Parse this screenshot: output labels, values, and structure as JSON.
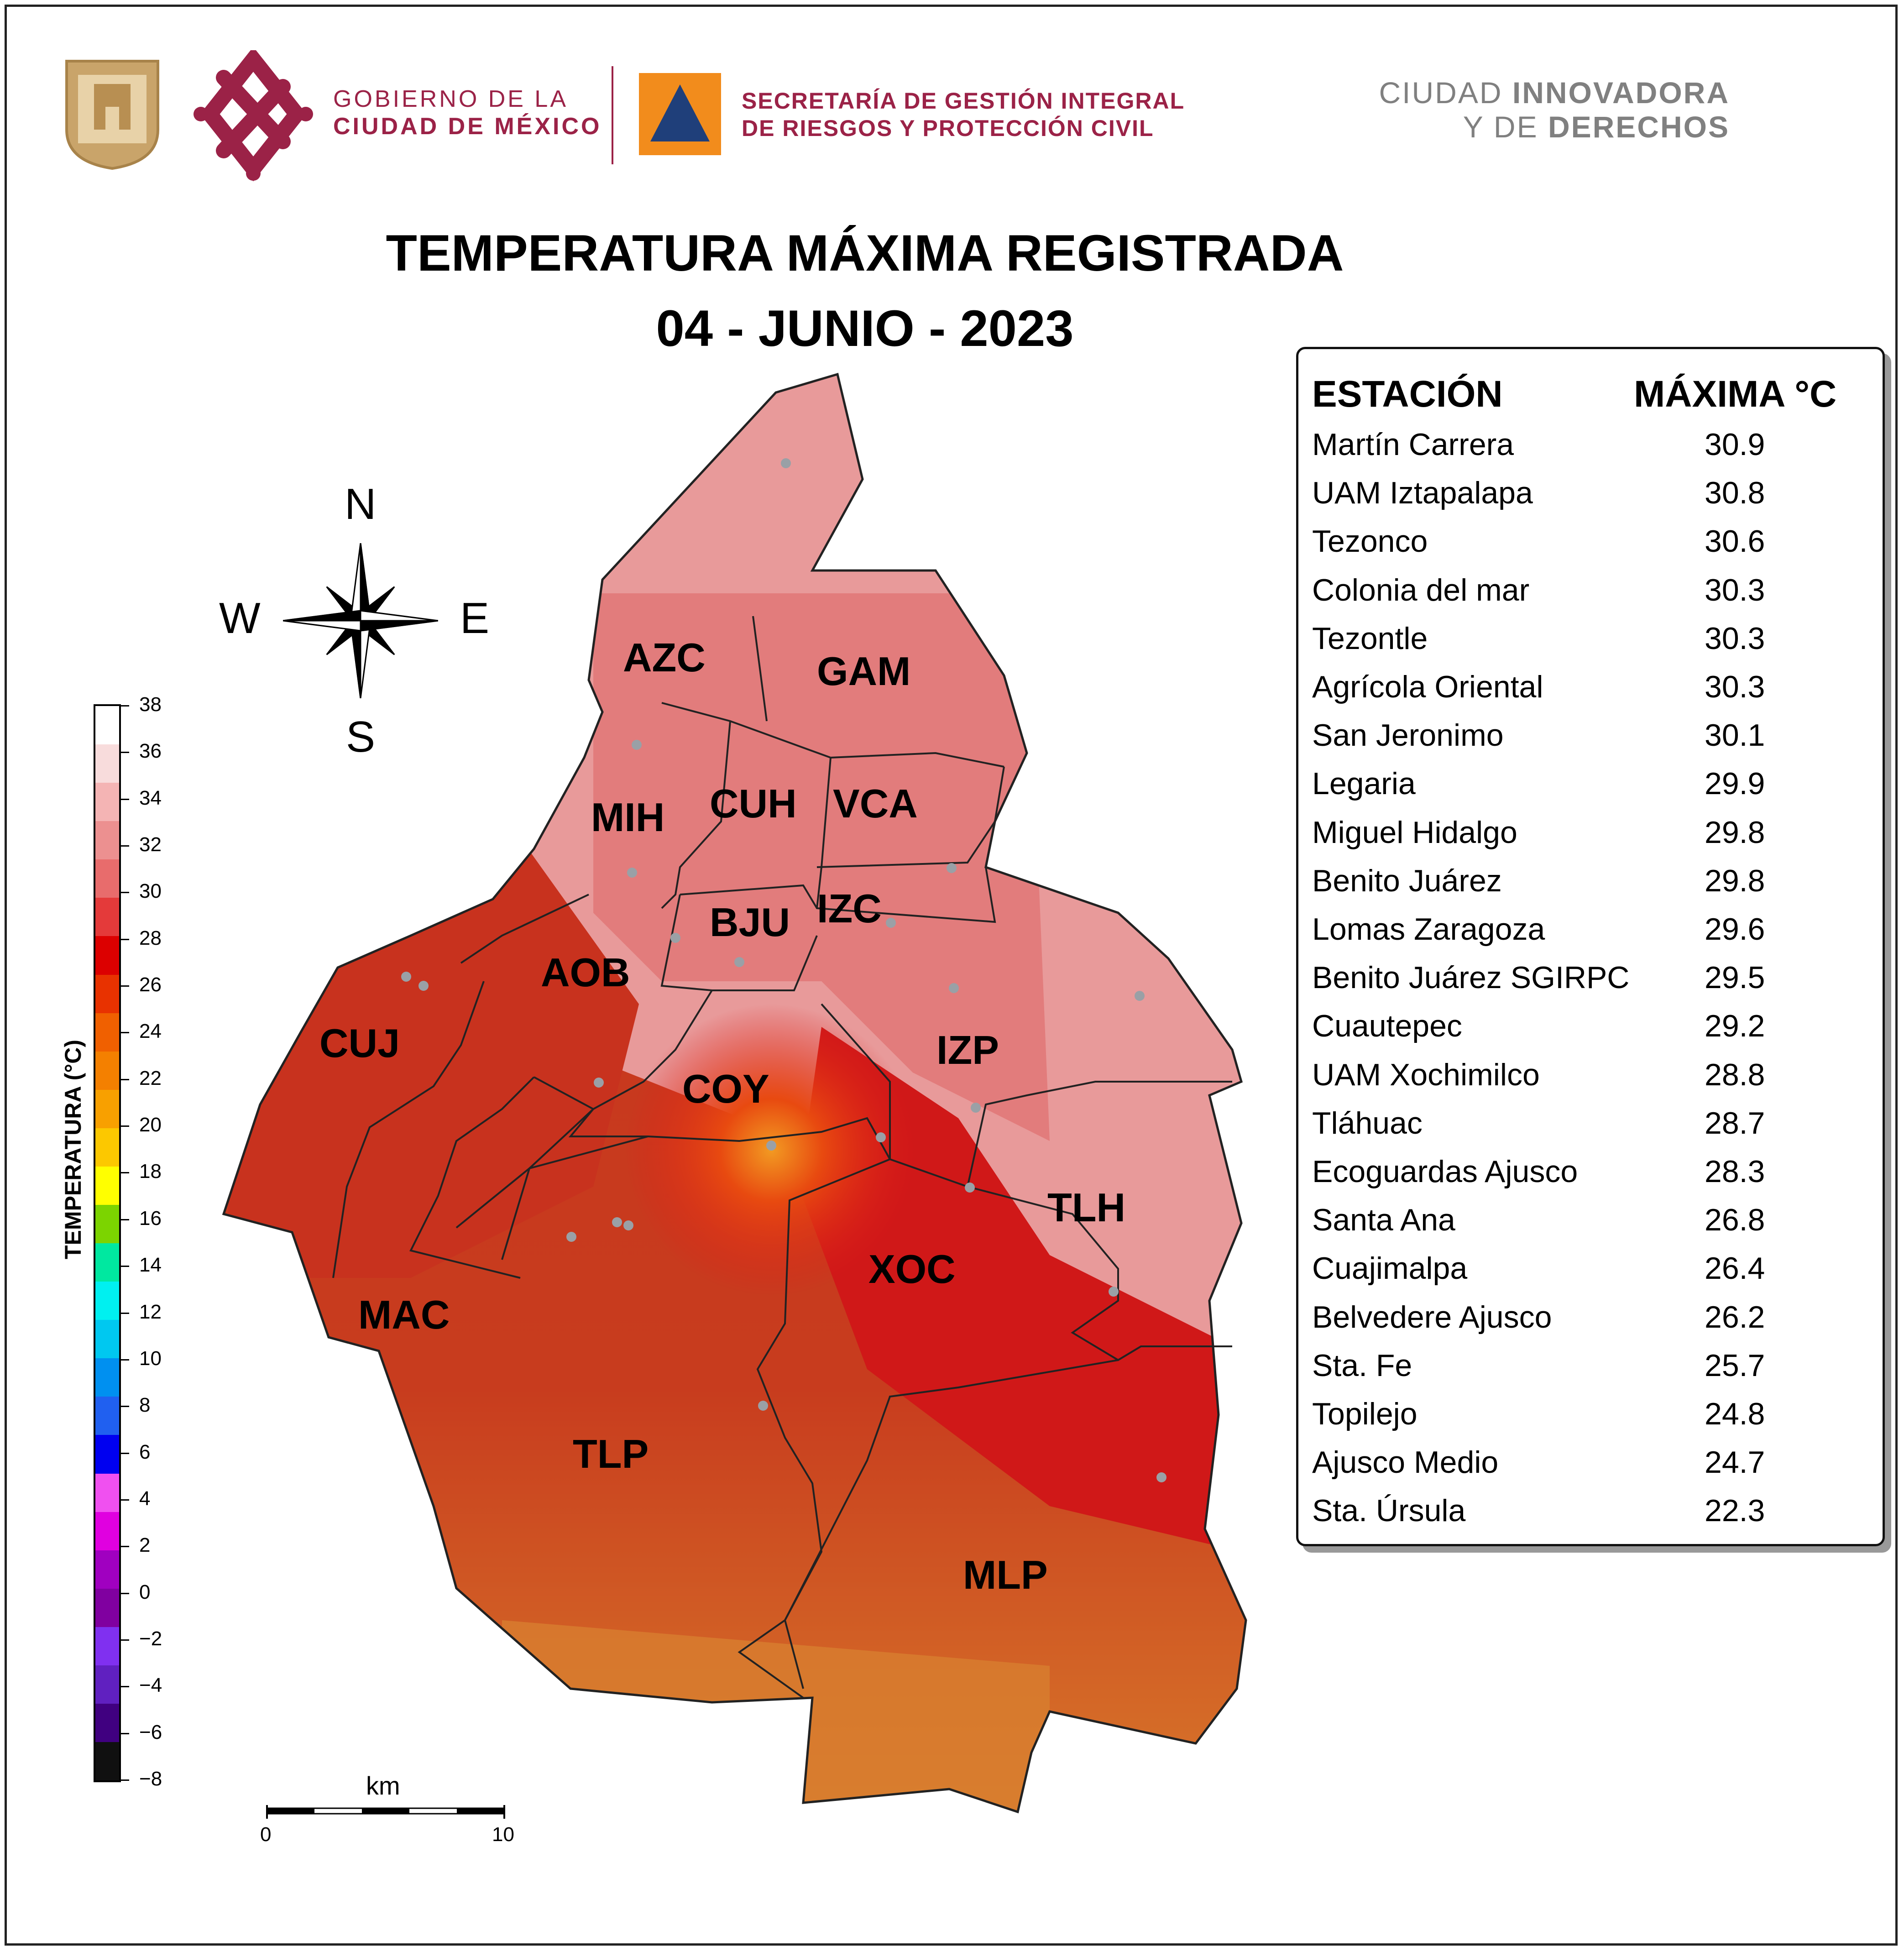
{
  "header": {
    "gov_line1": "GOBIERNO DE LA",
    "gov_line2": "CIUDAD DE MÉXICO",
    "sec_line1": "SECRETARÍA DE GESTIÓN INTEGRAL",
    "sec_line2": "DE RIESGOS Y PROTECCIÓN CIVIL",
    "slogan1_a": "CIUDAD ",
    "slogan1_b": "INNOVADORA",
    "slogan2_a": "Y DE ",
    "slogan2_b": "DERECHOS"
  },
  "title": {
    "line1": "TEMPERATURA MÁXIMA REGISTRADA",
    "line2": "04 - JUNIO - 2023"
  },
  "compass": {
    "n": "N",
    "s": "S",
    "e": "E",
    "w": "W"
  },
  "colorbar": {
    "title": "TEMPERATURA (°C)",
    "ticks": [
      "38",
      "36",
      "34",
      "32",
      "30",
      "28",
      "26",
      "24",
      "22",
      "20",
      "18",
      "16",
      "14",
      "12",
      "10",
      "8",
      "6",
      "4",
      "2",
      "0",
      "−2",
      "−4",
      "−6",
      "−8"
    ],
    "colors": [
      "#ffffff",
      "#f8dcdc",
      "#f4b4b4",
      "#ec9090",
      "#e86c6c",
      "#e43a3a",
      "#dc0000",
      "#e83200",
      "#f06000",
      "#f48000",
      "#f8a000",
      "#fcc800",
      "#ffff00",
      "#7cd400",
      "#00e8a0",
      "#00f0f0",
      "#00c8f0",
      "#0090f0",
      "#2060f0",
      "#0000f0",
      "#f050f0",
      "#e000e0",
      "#a000c0",
      "#8000a0",
      "#8030f0",
      "#6020c0",
      "#400080",
      "#101010"
    ]
  },
  "scale": {
    "unit": "km",
    "left": "0",
    "right": "10"
  },
  "stations": {
    "header_name": "ESTACIÓN",
    "header_value": "MÁXIMA °C",
    "rows": [
      {
        "name": "Martín Carrera",
        "value": "30.9"
      },
      {
        "name": "UAM Iztapalapa",
        "value": "30.8"
      },
      {
        "name": "Tezonco",
        "value": "30.6"
      },
      {
        "name": "Colonia del mar",
        "value": "30.3"
      },
      {
        "name": "Tezontle",
        "value": "30.3"
      },
      {
        "name": "Agrícola Oriental",
        "value": "30.3"
      },
      {
        "name": "San Jeronimo",
        "value": "30.1"
      },
      {
        "name": "Legaria",
        "value": "29.9"
      },
      {
        "name": "Miguel Hidalgo",
        "value": "29.8"
      },
      {
        "name": "Benito Juárez",
        "value": "29.8"
      },
      {
        "name": "Lomas Zaragoza",
        "value": "29.6"
      },
      {
        "name": "Benito Juárez SGIRPC",
        "value": "29.5"
      },
      {
        "name": "Cuautepec",
        "value": "29.2"
      },
      {
        "name": "UAM Xochimilco",
        "value": "28.8"
      },
      {
        "name": "Tláhuac",
        "value": "28.7"
      },
      {
        "name": "Ecoguardas Ajusco",
        "value": "28.3"
      },
      {
        "name": "Santa Ana",
        "value": "26.8"
      },
      {
        "name": "Cuajimalpa",
        "value": "26.4"
      },
      {
        "name": "Belvedere Ajusco",
        "value": "26.2"
      },
      {
        "name": "Sta. Fe",
        "value": "25.7"
      },
      {
        "name": "Topilejo",
        "value": "24.8"
      },
      {
        "name": "Ajusco Medio",
        "value": "24.7"
      },
      {
        "name": "Sta. Úrsula",
        "value": "22.3"
      }
    ]
  },
  "regions": [
    "AZC",
    "GAM",
    "MIH",
    "CUH",
    "VCA",
    "BJU",
    "IZC",
    "AOB",
    "CUJ",
    "COY",
    "IZP",
    "TLH",
    "XOC",
    "MAC",
    "TLP",
    "MLP"
  ]
}
